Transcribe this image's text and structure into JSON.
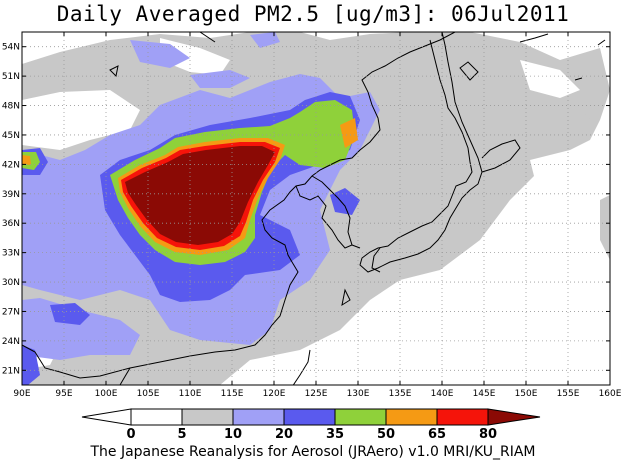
{
  "title": "Daily Averaged PM2.5 [ug/m3]: 06Jul2011",
  "footer": "The Japanese Reanalysis for Aerosol (JRAero) v1.0 MRI/KU_RIAM",
  "map": {
    "lon_range": [
      90,
      160
    ],
    "lat_range": [
      19.5,
      55.5
    ],
    "lon_ticks": [
      "90E",
      "95E",
      "100E",
      "105E",
      "110E",
      "115E",
      "120E",
      "125E",
      "130E",
      "135E",
      "140E",
      "145E",
      "150E",
      "155E",
      "160E"
    ],
    "lat_ticks": [
      "21N",
      "24N",
      "27N",
      "30N",
      "33N",
      "36N",
      "39N",
      "42N",
      "45N",
      "48N",
      "51N",
      "54N"
    ],
    "grid": "dotted"
  },
  "colorbar": {
    "levels": [
      "0",
      "5",
      "10",
      "20",
      "35",
      "50",
      "65",
      "80"
    ],
    "colors": [
      "#ffffff",
      "#c8c8c8",
      "#a0a0f6",
      "#5a5aee",
      "#8fd13a",
      "#f59a14",
      "#f5140a",
      "#8b0a05"
    ],
    "extend": "both"
  }
}
